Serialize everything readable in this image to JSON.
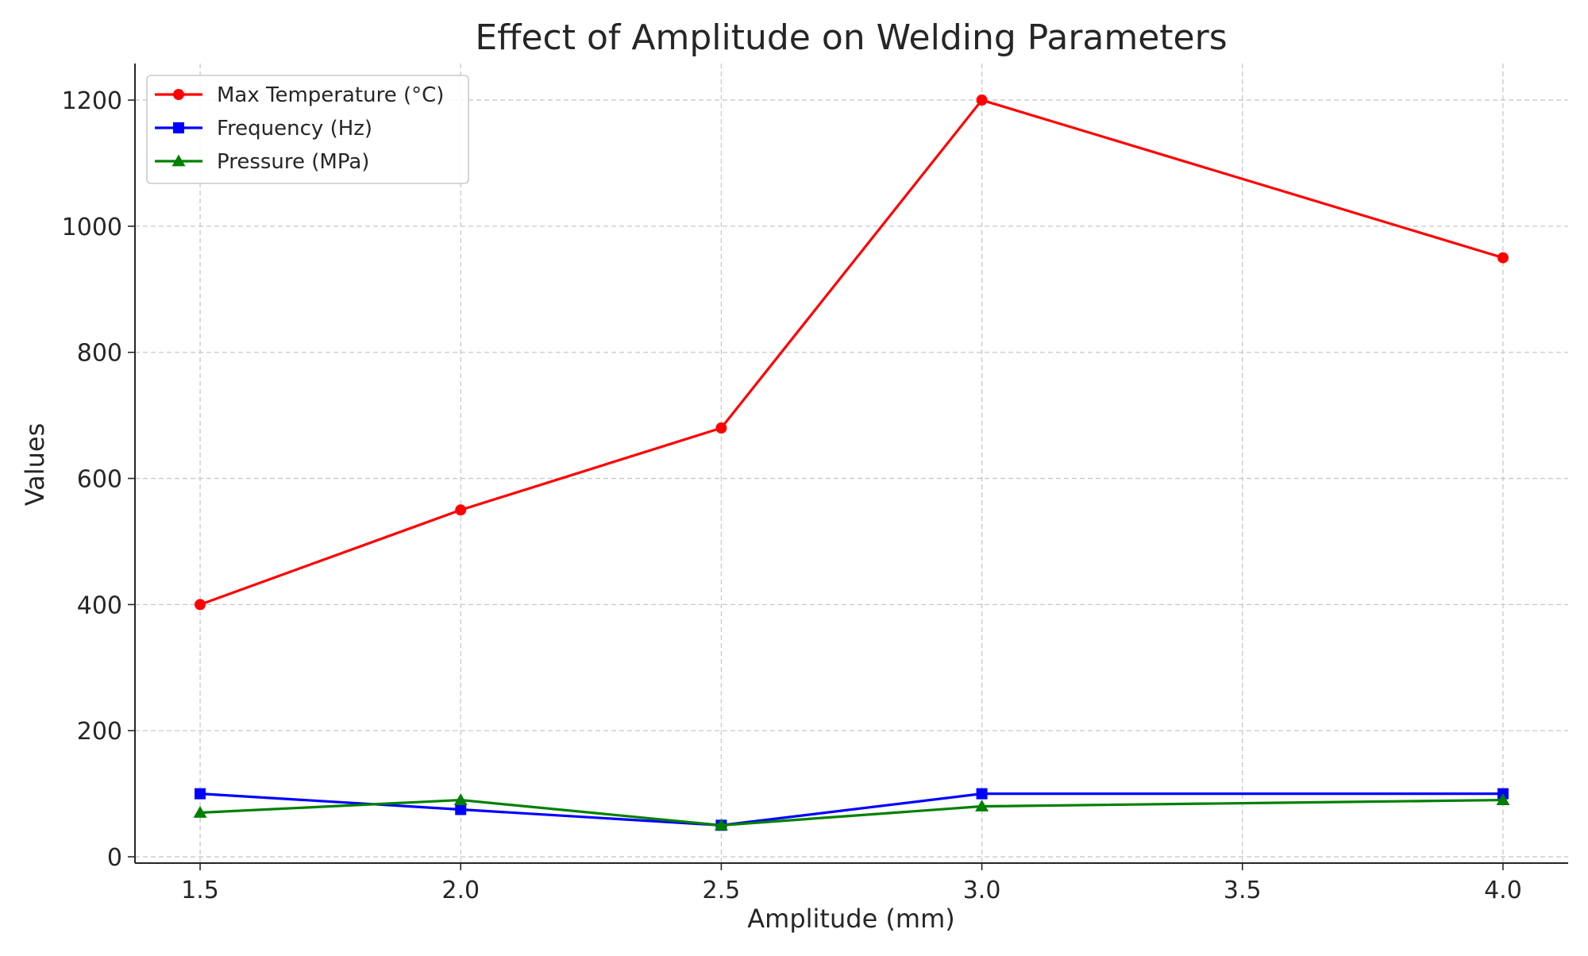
{
  "chart_data": {
    "type": "line",
    "title": "Effect of Amplitude on Welding Parameters",
    "xlabel": "Amplitude (mm)",
    "ylabel": "Values",
    "x": [
      1.5,
      2.0,
      2.5,
      3.0,
      4.0
    ],
    "xlim": [
      1.375,
      4.125
    ],
    "ylim": [
      -10,
      1258
    ],
    "xticks": [
      "1.5",
      "2.0",
      "2.5",
      "3.0",
      "3.5",
      "4.0"
    ],
    "yticks": [
      "0",
      "200",
      "400",
      "600",
      "800",
      "1000",
      "1200"
    ],
    "grid": true,
    "legend_position": "top-left",
    "series": [
      {
        "name": "Max Temperature (°C)",
        "values": [
          400,
          550,
          680,
          1200,
          950
        ],
        "color": "#ff0000",
        "marker": "circle"
      },
      {
        "name": "Frequency (Hz)",
        "values": [
          100,
          75,
          50,
          100,
          100
        ],
        "color": "#0000ff",
        "marker": "square"
      },
      {
        "name": "Pressure (MPa)",
        "values": [
          70,
          90,
          50,
          80,
          90
        ],
        "color": "#008000",
        "marker": "triangle"
      }
    ]
  }
}
